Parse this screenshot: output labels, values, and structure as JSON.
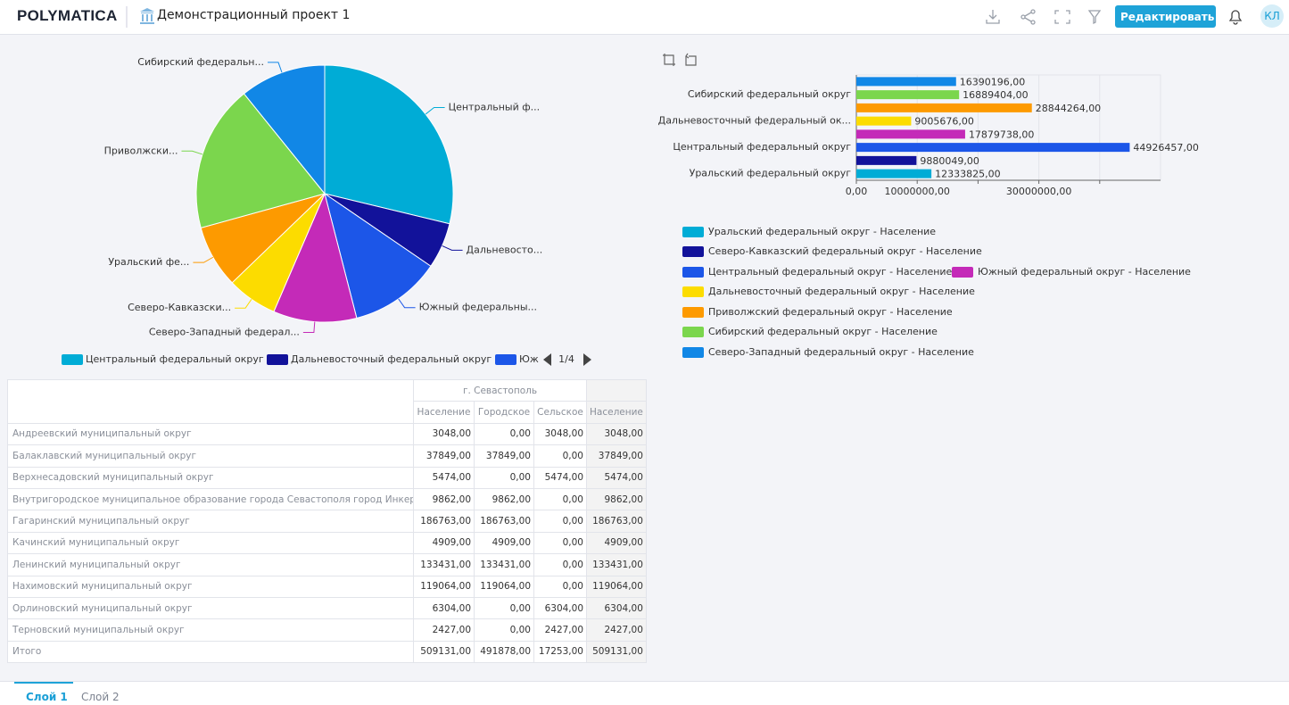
{
  "header": {
    "logo": "POLYMATICA",
    "title": "Демонстрационный проект 1",
    "edit_button": "Редактировать",
    "avatar": "КЛ"
  },
  "chart_data": [
    {
      "type": "pie",
      "categories": [
        "Центральный ф...",
        "Дальневосто...",
        "Южный федеральны...",
        "Северо-Западный федерал...",
        "Северо-Кавказски...",
        "Уральский фе...",
        "Приволжски...",
        "Сибирский федеральн..."
      ],
      "values": [
        44926457,
        9005676,
        17879738,
        16390196,
        9880049,
        12333825,
        28844264,
        16889404
      ],
      "colors": [
        "#00acd6",
        "#12129a",
        "#1c56e8",
        "#c42ab8",
        "#fcdc00",
        "#fd9a00",
        "#7bd64d",
        "#1187e6"
      ],
      "legend": [
        "Центральный федеральный округ",
        "Дальневосточный федеральный округ",
        "Юж"
      ],
      "legend_page": "1/4"
    },
    {
      "type": "bar",
      "orientation": "horizontal",
      "categories": [
        "Уральский федеральный округ",
        null,
        "Центральный федеральный округ",
        null,
        "Дальневосточный федеральный ок...",
        null,
        "Сибирский федеральный округ",
        null
      ],
      "values": [
        12333825,
        9880049,
        44926457,
        17879738,
        9005676,
        28844264,
        16889404,
        16390196
      ],
      "value_labels": [
        "12333825,00",
        "9880049,00",
        "44926457,00",
        "17879738,00",
        "9005676,00",
        "28844264,00",
        "16889404,00",
        "16390196,00"
      ],
      "colors": [
        "#00acd6",
        "#12129a",
        "#1c56e8",
        "#c42ab8",
        "#fcdc00",
        "#fd9a00",
        "#7bd64d",
        "#1187e6"
      ],
      "legend": [
        "Уральский федеральный округ - Население",
        "Северо-Кавказский федеральный округ - Население",
        "Центральный федеральный округ - Население",
        "Южный федеральный округ - Население",
        "Дальневосточный федеральный округ - Население",
        "Приволжский федеральный округ - Население",
        "Сибирский федеральный округ - Население",
        "Северо-Западный федеральный округ - Население"
      ],
      "xlim": [
        0,
        50000000
      ],
      "xticks": [
        {
          "value": 0,
          "label": "0,00"
        },
        {
          "value": 10000000,
          "label": "10000000,00"
        },
        {
          "value": 20000000,
          "label": null
        },
        {
          "value": 30000000,
          "label": "30000000,00"
        },
        {
          "value": 40000000,
          "label": null
        }
      ],
      "grid": true
    }
  ],
  "table": {
    "group_header": "г. Севастополь",
    "columns": [
      "Население",
      "Городское",
      "Сельское",
      "Население"
    ],
    "rows": [
      [
        "Андреевский муниципальный округ",
        "3048,00",
        "0,00",
        "3048,00",
        "3048,00"
      ],
      [
        "Балаклавский муниципальный округ",
        "37849,00",
        "37849,00",
        "0,00",
        "37849,00"
      ],
      [
        "Верхнесадовский муниципальный округ",
        "5474,00",
        "0,00",
        "5474,00",
        "5474,00"
      ],
      [
        "Внутригородское муниципальное образование города Севастополя город Инкерман",
        "9862,00",
        "9862,00",
        "0,00",
        "9862,00"
      ],
      [
        "Гагаринский муниципальный округ",
        "186763,00",
        "186763,00",
        "0,00",
        "186763,00"
      ],
      [
        "Качинский муниципальный округ",
        "4909,00",
        "4909,00",
        "0,00",
        "4909,00"
      ],
      [
        "Ленинский муниципальный округ",
        "133431,00",
        "133431,00",
        "0,00",
        "133431,00"
      ],
      [
        "Нахимовский муниципальный округ",
        "119064,00",
        "119064,00",
        "0,00",
        "119064,00"
      ],
      [
        "Орлиновский муниципальный округ",
        "6304,00",
        "0,00",
        "6304,00",
        "6304,00"
      ],
      [
        "Терновский муниципальный округ",
        "2427,00",
        "0,00",
        "2427,00",
        "2427,00"
      ],
      [
        "Итого",
        "509131,00",
        "491878,00",
        "17253,00",
        "509131,00"
      ]
    ]
  },
  "tabs": [
    "Слой 1",
    "Слой 2"
  ]
}
